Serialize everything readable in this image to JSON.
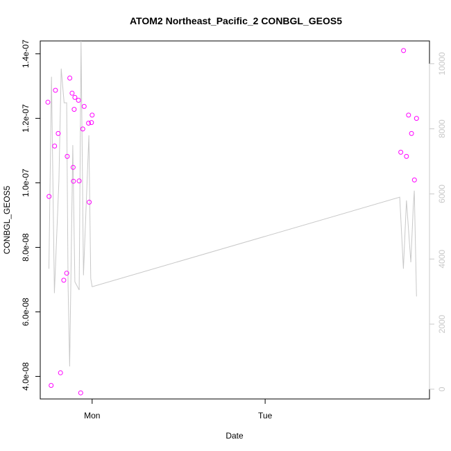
{
  "chart_data": {
    "type": "scatter",
    "title": "ATOM2 Northeast_Pacific_2 CONBGL_GEOS5",
    "xlabel": "Date",
    "ylabel": "CONBGL_GEOS5",
    "x_ticks": [
      "Mon",
      "Tue"
    ],
    "x_tick_days": [
      1,
      2
    ],
    "xlim": [
      0.7,
      2.95
    ],
    "y_ticks": [
      "4.0e-08",
      "6.0e-08",
      "8.0e-08",
      "1.0e-07",
      "1.2e-07",
      "1.4e-07"
    ],
    "ylim": [
      3.3e-08,
      1.44e-07
    ],
    "y2_ticks": [
      "0",
      "2000",
      "4000",
      "6000",
      "8000",
      "10000"
    ],
    "y2lim": [
      -300,
      10700
    ],
    "grid": false,
    "colors": {
      "points": "#ff00ff",
      "line": "#c8c8c8",
      "axis": "#000000",
      "right_axis": "#c8c8c8"
    },
    "series": [
      {
        "axis": "left",
        "style": "open-circle",
        "points": [
          {
            "x": 0.744,
            "y": 1.25e-07
          },
          {
            "x": 0.751,
            "y": 9.58e-08
          },
          {
            "x": 0.763,
            "y": 3.72e-08
          },
          {
            "x": 0.783,
            "y": 1.114e-07
          },
          {
            "x": 0.788,
            "y": 1.287e-07
          },
          {
            "x": 0.804,
            "y": 1.153e-07
          },
          {
            "x": 0.817,
            "y": 4.11e-08
          },
          {
            "x": 0.836,
            "y": 6.98e-08
          },
          {
            "x": 0.853,
            "y": 7.2e-08
          },
          {
            "x": 0.856,
            "y": 1.082e-07
          },
          {
            "x": 0.871,
            "y": 1.325e-07
          },
          {
            "x": 0.884,
            "y": 1.278e-07
          },
          {
            "x": 0.89,
            "y": 1.048e-07
          },
          {
            "x": 0.892,
            "y": 1.005e-07
          },
          {
            "x": 0.896,
            "y": 1.228e-07
          },
          {
            "x": 0.9,
            "y": 1.265e-07
          },
          {
            "x": 0.921,
            "y": 1.256e-07
          },
          {
            "x": 0.925,
            "y": 1.006e-07
          },
          {
            "x": 0.934,
            "y": 3.49e-08
          },
          {
            "x": 0.946,
            "y": 1.167e-07
          },
          {
            "x": 0.954,
            "y": 1.237e-07
          },
          {
            "x": 0.979,
            "y": 1.185e-07
          },
          {
            "x": 0.983,
            "y": 9.4e-08
          },
          {
            "x": 0.996,
            "y": 1.187e-07
          },
          {
            "x": 1.0,
            "y": 1.21e-07
          },
          {
            "x": 2.784,
            "y": 1.095e-07
          },
          {
            "x": 2.8,
            "y": 1.41e-07
          },
          {
            "x": 2.817,
            "y": 1.082e-07
          },
          {
            "x": 2.829,
            "y": 1.21e-07
          },
          {
            "x": 2.846,
            "y": 1.153e-07
          },
          {
            "x": 2.863,
            "y": 1.009e-07
          },
          {
            "x": 2.875,
            "y": 1.2e-07
          }
        ]
      },
      {
        "axis": "right",
        "style": "line",
        "points": [
          {
            "x": 0.75,
            "y": 3700
          },
          {
            "x": 0.765,
            "y": 9600
          },
          {
            "x": 0.782,
            "y": 2950
          },
          {
            "x": 0.808,
            "y": 6400
          },
          {
            "x": 0.821,
            "y": 9850
          },
          {
            "x": 0.838,
            "y": 8800
          },
          {
            "x": 0.853,
            "y": 8800
          },
          {
            "x": 0.861,
            "y": 3200
          },
          {
            "x": 0.87,
            "y": 700
          },
          {
            "x": 0.888,
            "y": 7500
          },
          {
            "x": 0.9,
            "y": 3300
          },
          {
            "x": 0.925,
            "y": 3050
          },
          {
            "x": 0.936,
            "y": 10700
          },
          {
            "x": 0.95,
            "y": 3500
          },
          {
            "x": 0.981,
            "y": 7800
          },
          {
            "x": 0.992,
            "y": 3400
          },
          {
            "x": 1.0,
            "y": 3150
          },
          {
            "x": 2.778,
            "y": 5900
          },
          {
            "x": 2.799,
            "y": 3700
          },
          {
            "x": 2.817,
            "y": 5800
          },
          {
            "x": 2.842,
            "y": 3900
          },
          {
            "x": 2.856,
            "y": 5600
          },
          {
            "x": 2.862,
            "y": 6100
          },
          {
            "x": 2.875,
            "y": 2850
          }
        ]
      }
    ]
  }
}
